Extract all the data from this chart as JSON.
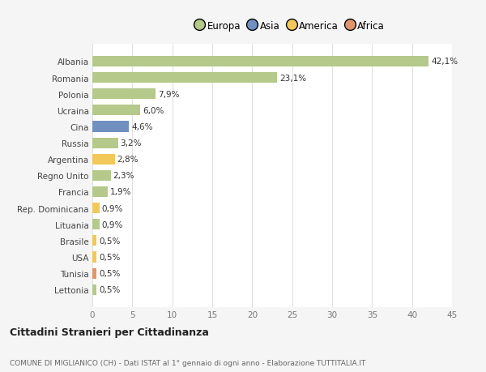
{
  "countries": [
    "Lettonia",
    "Tunisia",
    "USA",
    "Brasile",
    "Lituania",
    "Rep. Dominicana",
    "Francia",
    "Regno Unito",
    "Argentina",
    "Russia",
    "Cina",
    "Ucraina",
    "Polonia",
    "Romania",
    "Albania"
  ],
  "values": [
    0.5,
    0.5,
    0.5,
    0.5,
    0.9,
    0.9,
    1.9,
    2.3,
    2.8,
    3.2,
    4.6,
    6.0,
    7.9,
    23.1,
    42.1
  ],
  "labels": [
    "0,5%",
    "0,5%",
    "0,5%",
    "0,5%",
    "0,9%",
    "0,9%",
    "1,9%",
    "2,3%",
    "2,8%",
    "3,2%",
    "4,6%",
    "6,0%",
    "7,9%",
    "23,1%",
    "42,1%"
  ],
  "colors": [
    "#b5c98a",
    "#e0956b",
    "#f2c85a",
    "#f2c85a",
    "#b5c98a",
    "#f2c85a",
    "#b5c98a",
    "#b5c98a",
    "#f2c85a",
    "#b5c98a",
    "#7090c0",
    "#b5c98a",
    "#b5c98a",
    "#b5c98a",
    "#b5c98a"
  ],
  "legend_labels": [
    "Europa",
    "Asia",
    "America",
    "Africa"
  ],
  "legend_colors": [
    "#b5c98a",
    "#7090c0",
    "#f2c85a",
    "#e0956b"
  ],
  "xlim": [
    0,
    45
  ],
  "xticks": [
    0,
    5,
    10,
    15,
    20,
    25,
    30,
    35,
    40,
    45
  ],
  "title": "Cittadini Stranieri per Cittadinanza",
  "subtitle": "COMUNE DI MIGLIANICO (CH) - Dati ISTAT al 1° gennaio di ogni anno - Elaborazione TUTTITALIA.IT",
  "bg_color": "#f5f5f5",
  "plot_bg_color": "#ffffff",
  "grid_color": "#e0e0e0"
}
